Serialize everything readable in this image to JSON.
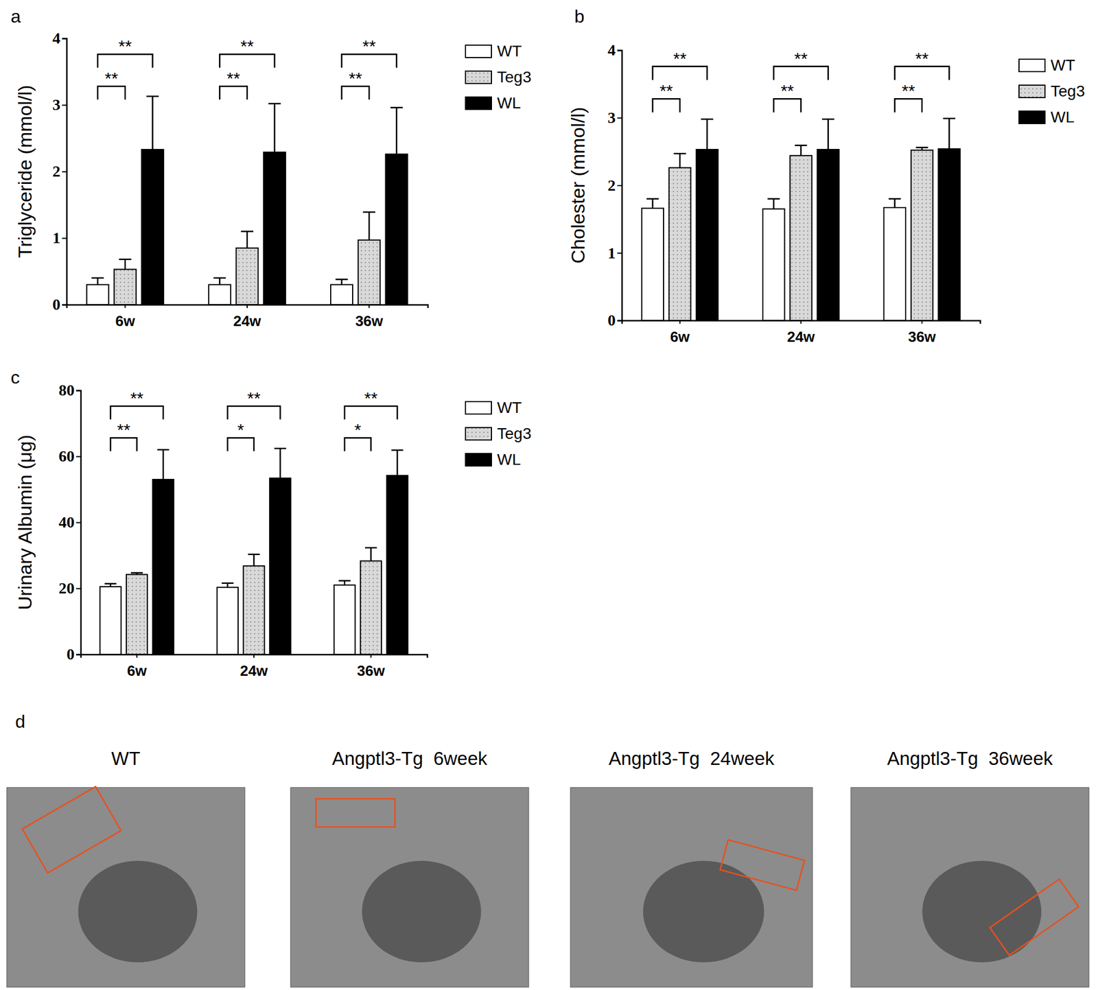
{
  "chart_data": [
    {
      "type": "bar",
      "title": "a",
      "y_label": "Triglyceride (mmol/l)",
      "categories": [
        "6w",
        "24w",
        "36w"
      ],
      "series": [
        {
          "name": "WT",
          "color": "#ffffff",
          "values": [
            0.3,
            0.3,
            0.3
          ],
          "errors": [
            0.1,
            0.1,
            0.08
          ]
        },
        {
          "name": "Teg3",
          "color": "#d9d9d9",
          "values": [
            0.53,
            0.85,
            0.97
          ],
          "errors": [
            0.15,
            0.25,
            0.42
          ]
        },
        {
          "name": "WL",
          "color": "#000000",
          "values": [
            2.33,
            2.29,
            2.26
          ],
          "errors": [
            0.8,
            0.73,
            0.7
          ]
        }
      ],
      "ylim": [
        0,
        4
      ],
      "yticks": [
        0,
        1,
        2,
        3,
        4
      ],
      "legend": "right",
      "annotations": [
        {
          "category": "6w",
          "series": [
            "WT",
            "Teg3"
          ],
          "text": "**"
        },
        {
          "category": "6w",
          "series": [
            "WT",
            "WL"
          ],
          "text": "**"
        },
        {
          "category": "24w",
          "series": [
            "WT",
            "Teg3"
          ],
          "text": "**"
        },
        {
          "category": "24w",
          "series": [
            "WT",
            "WL"
          ],
          "text": "**"
        },
        {
          "category": "36w",
          "series": [
            "WT",
            "Teg3"
          ],
          "text": "**"
        },
        {
          "category": "36w",
          "series": [
            "WT",
            "WL"
          ],
          "text": "**"
        }
      ]
    },
    {
      "type": "bar",
      "title": "b",
      "y_label": "Cholester (mmol/l)",
      "categories": [
        "6w",
        "24w",
        "36w"
      ],
      "series": [
        {
          "name": "WT",
          "color": "#ffffff",
          "values": [
            1.66,
            1.65,
            1.67
          ],
          "errors": [
            0.14,
            0.15,
            0.13
          ]
        },
        {
          "name": "Teg3",
          "color": "#d9d9d9",
          "values": [
            2.26,
            2.44,
            2.52
          ],
          "errors": [
            0.21,
            0.15,
            0.04
          ]
        },
        {
          "name": "WL",
          "color": "#000000",
          "values": [
            2.53,
            2.53,
            2.54
          ],
          "errors": [
            0.45,
            0.45,
            0.45
          ]
        }
      ],
      "ylim": [
        0,
        4
      ],
      "yticks": [
        0,
        1,
        2,
        3,
        4
      ],
      "legend": "right",
      "annotations": [
        {
          "category": "6w",
          "series": [
            "WT",
            "Teg3"
          ],
          "text": "**"
        },
        {
          "category": "6w",
          "series": [
            "WT",
            "WL"
          ],
          "text": "**"
        },
        {
          "category": "24w",
          "series": [
            "WT",
            "Teg3"
          ],
          "text": "**"
        },
        {
          "category": "24w",
          "series": [
            "WT",
            "WL"
          ],
          "text": "**"
        },
        {
          "category": "36w",
          "series": [
            "WT",
            "Teg3"
          ],
          "text": "**"
        },
        {
          "category": "36w",
          "series": [
            "WT",
            "WL"
          ],
          "text": "**"
        }
      ]
    },
    {
      "type": "bar",
      "title": "c",
      "y_label": "Urinary Albumin (μg)",
      "categories": [
        "6w",
        "24w",
        "36w"
      ],
      "series": [
        {
          "name": "WT",
          "color": "#ffffff",
          "values": [
            20.5,
            20.3,
            21
          ],
          "errors": [
            0.9,
            1.3,
            1.3
          ]
        },
        {
          "name": "Teg3",
          "color": "#d9d9d9",
          "values": [
            24.2,
            26.8,
            28.3
          ],
          "errors": [
            0.5,
            3.5,
            4
          ]
        },
        {
          "name": "WL",
          "color": "#000000",
          "values": [
            53,
            53.4,
            54.2
          ],
          "errors": [
            9,
            9,
            7.7
          ]
        }
      ],
      "ylim": [
        0,
        80
      ],
      "yticks": [
        0,
        20,
        40,
        60,
        80
      ],
      "legend": "right",
      "annotations": [
        {
          "category": "6w",
          "series": [
            "WT",
            "Teg3"
          ],
          "text": "**"
        },
        {
          "category": "6w",
          "series": [
            "WT",
            "WL"
          ],
          "text": "**"
        },
        {
          "category": "24w",
          "series": [
            "WT",
            "Teg3"
          ],
          "text": "*"
        },
        {
          "category": "24w",
          "series": [
            "WT",
            "WL"
          ],
          "text": "**"
        },
        {
          "category": "36w",
          "series": [
            "WT",
            "Teg3"
          ],
          "text": "*"
        },
        {
          "category": "36w",
          "series": [
            "WT",
            "WL"
          ],
          "text": "**"
        }
      ]
    }
  ],
  "panel_d": {
    "label": "d",
    "images": [
      {
        "title": "WT"
      },
      {
        "title": "Angptl3-Tg  6week"
      },
      {
        "title": "Angptl3-Tg  24week"
      },
      {
        "title": "Angptl3-Tg  36week"
      }
    ]
  }
}
